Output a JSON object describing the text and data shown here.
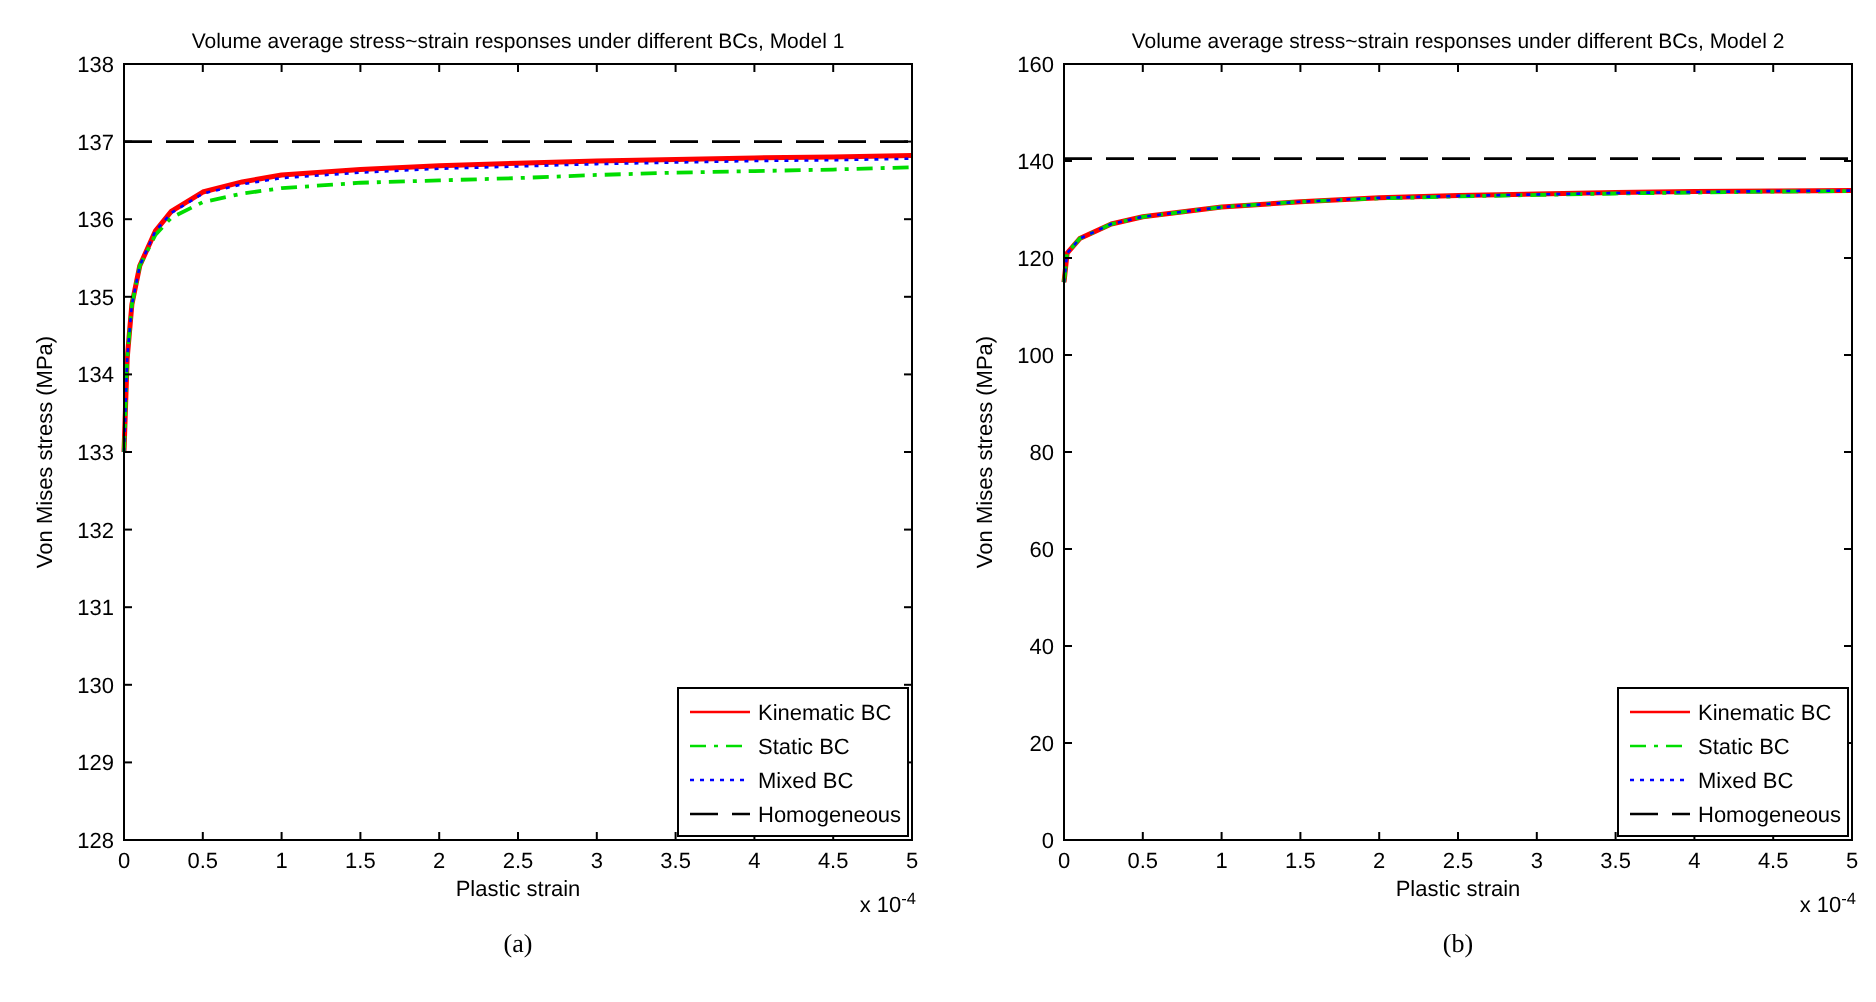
{
  "chart_data": [
    {
      "type": "line",
      "title": "Volume average stress~strain responses under different BCs, Model 1",
      "xlabel": "Plastic strain",
      "ylabel": "Von Mises stress (MPa)",
      "xlim": [
        0,
        5
      ],
      "xticks": [
        0,
        0.5,
        1,
        1.5,
        2,
        2.5,
        3,
        3.5,
        4,
        4.5,
        5
      ],
      "ylim": [
        128,
        138
      ],
      "yticks": [
        128,
        129,
        130,
        131,
        132,
        133,
        134,
        135,
        136,
        137,
        138
      ],
      "legend": "bottom right",
      "grid": false,
      "annotations": [
        "x 10$^{-4}$",
        "(a)"
      ],
      "x": [
        0,
        0.02,
        0.05,
        0.1,
        0.2,
        0.3,
        0.5,
        0.75,
        1,
        1.5,
        2,
        2.5,
        3,
        3.5,
        4,
        4.5,
        5
      ],
      "series": [
        {
          "name": "Kinematic BC",
          "color": "#ff0000",
          "line_style": "solid",
          "values": [
            133,
            134.2,
            134.9,
            135.4,
            135.85,
            136.1,
            136.35,
            136.48,
            136.57,
            136.64,
            136.69,
            136.72,
            136.75,
            136.77,
            136.79,
            136.8,
            136.82
          ]
        },
        {
          "name": "Static BC",
          "color": "#00dd00",
          "line_style": "dashdot",
          "values": [
            133,
            134.2,
            134.9,
            135.4,
            135.8,
            136.02,
            136.22,
            136.33,
            136.4,
            136.47,
            136.5,
            136.53,
            136.57,
            136.6,
            136.62,
            136.64,
            136.67
          ]
        },
        {
          "name": "Mixed BC",
          "color": "#0000ff",
          "line_style": "dotted",
          "values": [
            133,
            134.2,
            134.9,
            135.4,
            135.85,
            136.08,
            136.33,
            136.45,
            136.53,
            136.6,
            136.65,
            136.68,
            136.71,
            136.73,
            136.75,
            136.76,
            136.78
          ]
        }
      ],
      "ref_lines": [
        {
          "axis": "y",
          "value": 137,
          "label": "Homogeneous",
          "color": "#000000",
          "line_style": "dashed"
        }
      ]
    },
    {
      "type": "line",
      "title": "Volume average stress~strain responses under different BCs, Model 2",
      "xlabel": "Plastic strain",
      "ylabel": "Von Mises stress (MPa)",
      "xlim": [
        0,
        5
      ],
      "xticks": [
        0,
        0.5,
        1,
        1.5,
        2,
        2.5,
        3,
        3.5,
        4,
        4.5,
        5
      ],
      "ylim": [
        0,
        160
      ],
      "yticks": [
        0,
        20,
        40,
        60,
        80,
        100,
        120,
        140,
        160
      ],
      "legend": "bottom right",
      "grid": false,
      "annotations": [
        "x 10$^{-4}$",
        "(b)"
      ],
      "x": [
        0,
        0.02,
        0.1,
        0.3,
        0.5,
        1,
        1.5,
        2,
        2.5,
        3,
        3.5,
        4,
        4.5,
        5
      ],
      "series": [
        {
          "name": "Kinematic BC",
          "color": "#ff0000",
          "line_style": "solid",
          "values": [
            115,
            121,
            124,
            127,
            128.5,
            130.5,
            131.6,
            132.4,
            132.9,
            133.2,
            133.5,
            133.7,
            133.8,
            133.9
          ]
        },
        {
          "name": "Static BC",
          "color": "#00dd00",
          "line_style": "dashdot",
          "values": [
            115,
            121,
            124,
            127,
            128.5,
            130.5,
            131.6,
            132.3,
            132.7,
            133,
            133.3,
            133.5,
            133.7,
            133.8
          ]
        },
        {
          "name": "Mixed BC",
          "color": "#0000ff",
          "line_style": "dotted",
          "values": [
            115,
            121,
            124,
            127,
            128.5,
            130.5,
            131.6,
            132.4,
            132.8,
            133.1,
            133.4,
            133.6,
            133.8,
            133.9
          ]
        }
      ],
      "ref_lines": [
        {
          "axis": "y",
          "value": 140.5,
          "label": "Homogeneous",
          "color": "#000000",
          "line_style": "dashed"
        }
      ]
    }
  ]
}
